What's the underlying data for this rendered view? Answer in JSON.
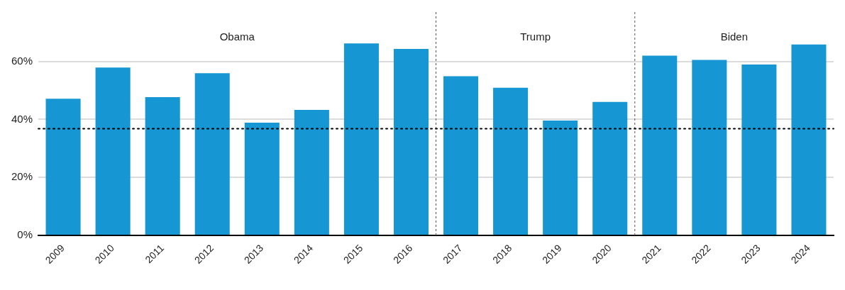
{
  "chart_data": {
    "type": "bar",
    "categories": [
      "2009",
      "2010",
      "2011",
      "2012",
      "2013",
      "2014",
      "2015",
      "2016",
      "2017",
      "2018",
      "2019",
      "2020",
      "2021",
      "2022",
      "2023",
      "2024"
    ],
    "values": [
      47.1,
      57.9,
      47.7,
      55.9,
      38.9,
      43.3,
      66.2,
      64.3,
      54.9,
      50.9,
      39.6,
      46.0,
      62.0,
      60.5,
      58.9,
      65.8
    ],
    "color": "#1696d2",
    "ylim": [
      0,
      77
    ],
    "yticks": [
      {
        "value": 0,
        "label": "0%"
      },
      {
        "value": 20,
        "label": "20%"
      },
      {
        "value": 40,
        "label": "40%"
      },
      {
        "value": 60,
        "label": "60%"
      }
    ],
    "grid": "y",
    "ref_lines": [
      {
        "axis": "y",
        "value": 36.8,
        "color": "#000000",
        "line_style": "dotted"
      }
    ],
    "annotations": [
      "Obama",
      "Trump",
      "Biden"
    ]
  }
}
